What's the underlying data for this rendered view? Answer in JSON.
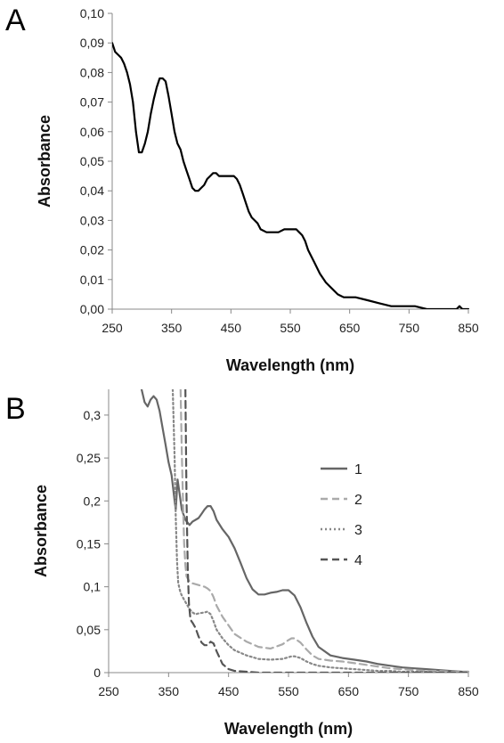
{
  "chart_data": [
    {
      "panel_label": "A",
      "type": "line",
      "xlabel": "Wavelength (nm)",
      "ylabel": "Absorbance",
      "xlim": [
        250,
        850
      ],
      "ylim": [
        0,
        0.1
      ],
      "x_ticks": [
        250,
        350,
        450,
        550,
        650,
        750,
        850
      ],
      "y_ticks": [
        0,
        0.01,
        0.02,
        0.03,
        0.04,
        0.05,
        0.06,
        0.07,
        0.08,
        0.09,
        0.1
      ],
      "x_tick_labels": [
        "250",
        "350",
        "450",
        "550",
        "650",
        "750",
        "850"
      ],
      "y_tick_labels": [
        "0,00",
        "0,01",
        "0,02",
        "0,03",
        "0,04",
        "0,05",
        "0,06",
        "0,07",
        "0,08",
        "0,09",
        "0,10"
      ],
      "series": [
        {
          "color": "#000000",
          "dash": "solid",
          "x": [
            250,
            255,
            260,
            265,
            270,
            275,
            280,
            285,
            290,
            295,
            300,
            305,
            310,
            315,
            320,
            325,
            330,
            335,
            340,
            345,
            350,
            355,
            360,
            365,
            370,
            375,
            380,
            385,
            390,
            395,
            400,
            405,
            410,
            415,
            420,
            425,
            430,
            435,
            440,
            445,
            450,
            455,
            460,
            465,
            470,
            475,
            480,
            485,
            490,
            495,
            500,
            510,
            520,
            530,
            540,
            550,
            555,
            560,
            565,
            570,
            575,
            580,
            590,
            600,
            610,
            620,
            630,
            640,
            650,
            660,
            680,
            700,
            720,
            740,
            760,
            780,
            800,
            830,
            835,
            840,
            850
          ],
          "y": [
            0.09,
            0.087,
            0.086,
            0.085,
            0.083,
            0.08,
            0.076,
            0.07,
            0.06,
            0.053,
            0.053,
            0.056,
            0.06,
            0.066,
            0.071,
            0.075,
            0.078,
            0.078,
            0.077,
            0.072,
            0.066,
            0.06,
            0.056,
            0.054,
            0.05,
            0.047,
            0.044,
            0.041,
            0.04,
            0.04,
            0.041,
            0.042,
            0.044,
            0.045,
            0.046,
            0.046,
            0.045,
            0.045,
            0.045,
            0.045,
            0.045,
            0.045,
            0.044,
            0.042,
            0.039,
            0.036,
            0.033,
            0.031,
            0.03,
            0.029,
            0.027,
            0.026,
            0.026,
            0.026,
            0.027,
            0.027,
            0.027,
            0.027,
            0.026,
            0.025,
            0.023,
            0.02,
            0.016,
            0.012,
            0.009,
            0.007,
            0.005,
            0.004,
            0.004,
            0.004,
            0.003,
            0.002,
            0.001,
            0.001,
            0.001,
            0.0,
            0.0,
            0.0,
            0.001,
            0.0,
            0.0
          ]
        }
      ]
    },
    {
      "panel_label": "B",
      "type": "line",
      "xlabel": "Wavelength (nm)",
      "ylabel": "Absorbance",
      "xlim": [
        250,
        850
      ],
      "ylim": [
        0,
        0.33
      ],
      "x_ticks": [
        250,
        350,
        450,
        550,
        650,
        750,
        850
      ],
      "y_ticks": [
        0,
        0.05,
        0.1,
        0.15,
        0.2,
        0.25,
        0.3
      ],
      "x_tick_labels": [
        "250",
        "350",
        "450",
        "550",
        "650",
        "750",
        "850"
      ],
      "y_tick_labels": [
        "0",
        "0,05",
        "0,1",
        "0,15",
        "0,2",
        "0,25",
        "0,3"
      ],
      "legend_position": "right",
      "series": [
        {
          "name": "1",
          "color": "#666666",
          "dash": "solid",
          "x": [
            305,
            310,
            315,
            320,
            325,
            330,
            335,
            340,
            345,
            350,
            355,
            360,
            362,
            365,
            368,
            372,
            378,
            385,
            390,
            395,
            400,
            405,
            410,
            415,
            420,
            425,
            430,
            440,
            450,
            460,
            470,
            480,
            490,
            500,
            510,
            520,
            530,
            540,
            550,
            560,
            570,
            580,
            590,
            600,
            620,
            640,
            660,
            680,
            700,
            720,
            740,
            760,
            780,
            800,
            820,
            840,
            850
          ],
          "y": [
            0.33,
            0.315,
            0.31,
            0.318,
            0.322,
            0.318,
            0.305,
            0.285,
            0.265,
            0.245,
            0.23,
            0.2,
            0.19,
            0.225,
            0.21,
            0.19,
            0.178,
            0.172,
            0.176,
            0.178,
            0.18,
            0.185,
            0.19,
            0.194,
            0.194,
            0.188,
            0.178,
            0.167,
            0.158,
            0.145,
            0.128,
            0.11,
            0.097,
            0.091,
            0.091,
            0.093,
            0.094,
            0.096,
            0.096,
            0.09,
            0.076,
            0.058,
            0.042,
            0.03,
            0.02,
            0.017,
            0.015,
            0.013,
            0.01,
            0.008,
            0.006,
            0.005,
            0.004,
            0.003,
            0.002,
            0.001,
            0.001
          ]
        },
        {
          "name": "2",
          "color": "#aaaaaa",
          "dash": "dashed",
          "x": [
            370,
            372,
            374,
            376,
            378,
            380,
            385,
            390,
            400,
            410,
            415,
            420,
            425,
            430,
            440,
            450,
            460,
            480,
            500,
            520,
            540,
            550,
            555,
            560,
            570,
            580,
            590,
            600,
            620,
            640,
            660,
            680,
            700,
            720,
            740,
            760,
            780,
            800,
            820,
            840,
            850
          ],
          "y": [
            0.33,
            0.26,
            0.2,
            0.15,
            0.125,
            0.112,
            0.106,
            0.104,
            0.102,
            0.1,
            0.098,
            0.095,
            0.088,
            0.078,
            0.065,
            0.055,
            0.045,
            0.036,
            0.03,
            0.028,
            0.033,
            0.038,
            0.04,
            0.04,
            0.035,
            0.027,
            0.02,
            0.016,
            0.014,
            0.013,
            0.011,
            0.009,
            0.007,
            0.005,
            0.004,
            0.003,
            0.002,
            0.002,
            0.001,
            0.001,
            0.001
          ]
        },
        {
          "name": "3",
          "color": "#888888",
          "dash": "dotted",
          "x": [
            357,
            360,
            362,
            364,
            366,
            368,
            370,
            372,
            375,
            380,
            385,
            390,
            395,
            400,
            410,
            415,
            420,
            425,
            430,
            440,
            450,
            460,
            480,
            500,
            520,
            540,
            550,
            555,
            560,
            570,
            580,
            590,
            600,
            620,
            640,
            660,
            680,
            700,
            720,
            740,
            760,
            780,
            800,
            820,
            840,
            850
          ],
          "y": [
            0.33,
            0.25,
            0.18,
            0.13,
            0.105,
            0.098,
            0.093,
            0.09,
            0.086,
            0.08,
            0.074,
            0.07,
            0.068,
            0.069,
            0.07,
            0.071,
            0.068,
            0.06,
            0.05,
            0.04,
            0.032,
            0.026,
            0.02,
            0.016,
            0.015,
            0.016,
            0.018,
            0.019,
            0.019,
            0.017,
            0.013,
            0.01,
            0.008,
            0.006,
            0.005,
            0.004,
            0.003,
            0.002,
            0.002,
            0.001,
            0.001,
            0.001,
            0.0,
            0.0,
            0.0,
            0.0
          ]
        },
        {
          "name": "4",
          "color": "#555555",
          "dash": "dashed",
          "x": [
            378,
            380,
            382,
            384,
            386,
            388,
            390,
            395,
            400,
            405,
            410,
            415,
            420,
            425,
            430,
            440,
            450,
            460,
            480,
            500,
            520,
            540,
            560,
            580,
            600,
            650,
            700,
            750,
            800,
            850
          ],
          "y": [
            0.33,
            0.2,
            0.12,
            0.08,
            0.065,
            0.06,
            0.058,
            0.052,
            0.042,
            0.035,
            0.032,
            0.032,
            0.036,
            0.034,
            0.025,
            0.01,
            0.004,
            0.002,
            0.001,
            0.0,
            0.0,
            0.0,
            0.0,
            0.0,
            0.0,
            0.0,
            0.0,
            0.0,
            0.0,
            0.0
          ]
        }
      ]
    }
  ]
}
